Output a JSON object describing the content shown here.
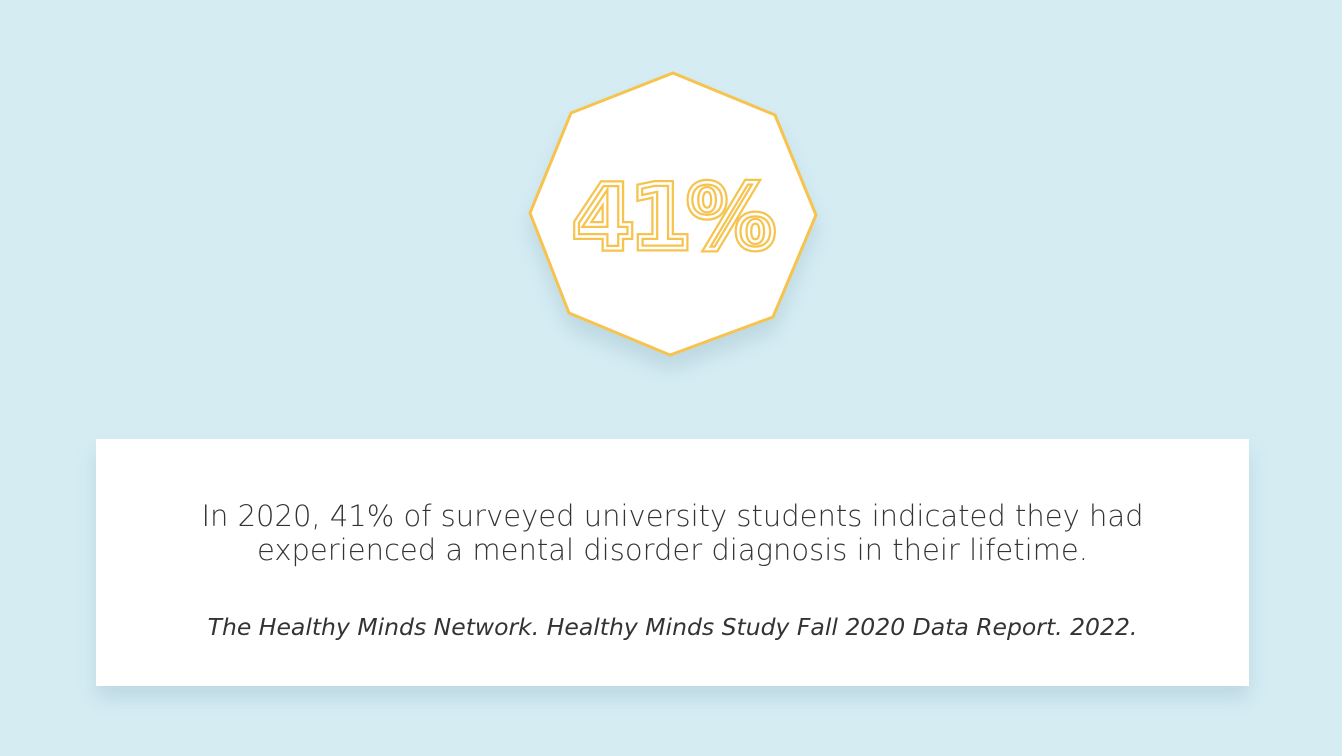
{
  "stat": "41%",
  "statement": [
    "In 2020, 41% of surveyed university students indicated they had",
    "experienced a mental disorder diagnosis in their lifetime."
  ],
  "citation": "The Healthy Minds Network. Healthy Minds Study Fall 2020 Data Report. 2022."
}
